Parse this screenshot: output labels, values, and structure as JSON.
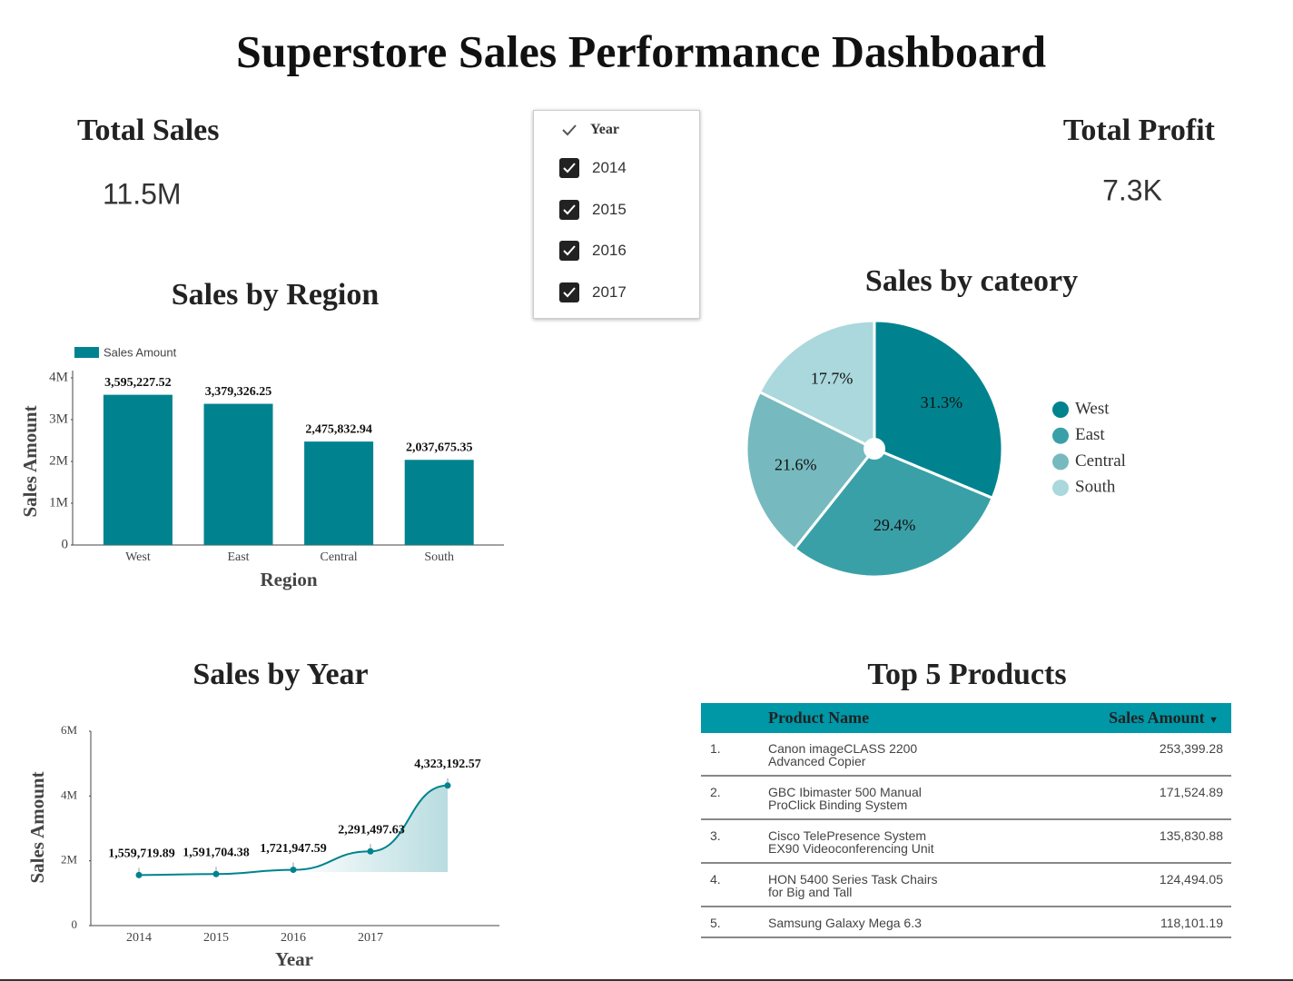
{
  "title": "Superstore Sales Performance Dashboard",
  "kpis": [
    {
      "label": "Total Sales",
      "value": "11.5M"
    },
    {
      "label": "Total Profit",
      "value": "7.3K"
    }
  ],
  "filter": {
    "label": "Year",
    "options": [
      "2014",
      "2015",
      "2016",
      "2017"
    ]
  },
  "chart_data": [
    {
      "type": "bar",
      "title": "Sales by Region",
      "x_label": "Region",
      "y_label": "Sales Amount",
      "legend": "Sales Amount",
      "color": "#00838f",
      "categories": [
        "West",
        "East",
        "Central",
        "South"
      ],
      "values": [
        3595227.52,
        3379326.25,
        2475832.94,
        2037675.35
      ],
      "value_labels": [
        "3,595,227.52",
        "3,379,326.25",
        "2,475,832.94",
        "2,037,675.35"
      ],
      "ylim": [
        0,
        4000000
      ],
      "yticks": [
        0,
        {
          "value": 1000000,
          "label": "1M"
        },
        {
          "value": 2000000,
          "label": "2M"
        },
        {
          "value": 3000000,
          "label": "3M"
        },
        {
          "value": 4000000,
          "label": "4M"
        }
      ]
    },
    {
      "type": "pie",
      "title": "Sales by cateory",
      "categories": [
        "West",
        "East",
        "Central",
        "South"
      ],
      "values": [
        31.3,
        29.4,
        21.6,
        17.7
      ],
      "value_labels": [
        "31.3%",
        "29.4%",
        "21.6%",
        "17.7%"
      ],
      "colors": [
        "#00838f",
        "#3aa0a8",
        "#76babf",
        "#aad8dc"
      ]
    },
    {
      "type": "line",
      "title": "Sales by Year",
      "x_label": "Year",
      "y_label": "Sales Amount",
      "color": "#00838f",
      "categories": [
        "2014",
        "2015",
        "2016",
        "2017",
        null
      ],
      "values": [
        1559719.89,
        1591704.38,
        1721947.59,
        2291497.63,
        4323192.57
      ],
      "value_labels": [
        "1,559,719.89",
        "1,591,704.38",
        "1,721,947.59",
        "2,291,497.63",
        "4,323,192.57"
      ],
      "ylim": [
        0,
        6000000
      ],
      "yticks": [
        0,
        {
          "value": 2000000,
          "label": "2M"
        },
        {
          "value": 4000000,
          "label": "4M"
        },
        {
          "value": 6000000,
          "label": "6M"
        }
      ]
    }
  ],
  "table": {
    "title": "Top 5 Products",
    "columns": [
      "Product Name",
      "Sales Amount"
    ],
    "rows": [
      [
        "1.",
        "Canon imageCLASS 2200 Advanced Copier",
        "253,399.28"
      ],
      [
        "2.",
        "GBC Ibimaster 500 Manual ProClick Binding System",
        "171,524.89"
      ],
      [
        "3.",
        "Cisco TelePresence System EX90 Videoconferencing Unit",
        "135,830.88"
      ],
      [
        "4.",
        "HON 5400 Series Task Chairs for Big and Tall",
        "124,494.05"
      ],
      [
        "5.",
        "Samsung Galaxy Mega 6.3",
        "118,101.19"
      ]
    ]
  }
}
